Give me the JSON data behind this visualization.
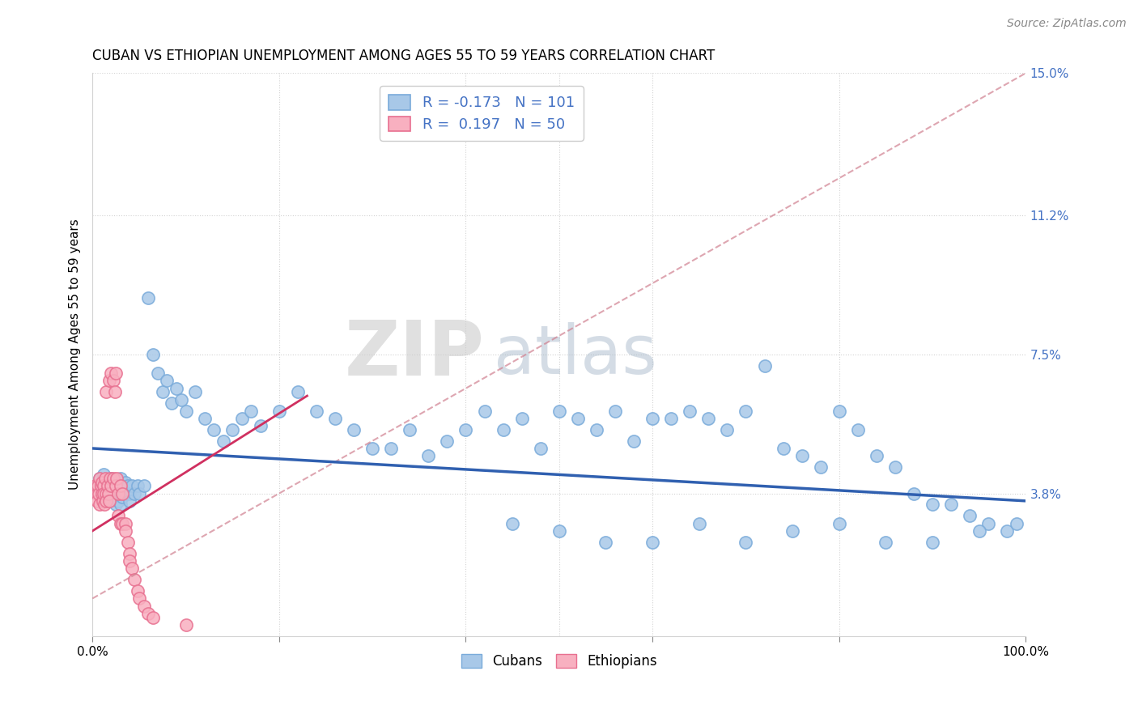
{
  "title": "CUBAN VS ETHIOPIAN UNEMPLOYMENT AMONG AGES 55 TO 59 YEARS CORRELATION CHART",
  "source": "Source: ZipAtlas.com",
  "ylabel": "Unemployment Among Ages 55 to 59 years",
  "xlim": [
    0,
    1.0
  ],
  "ylim": [
    0,
    0.15
  ],
  "xticks": [
    0.0,
    0.2,
    0.4,
    0.6,
    0.8,
    1.0
  ],
  "xticklabels": [
    "0.0%",
    "",
    "",
    "",
    "",
    "100.0%"
  ],
  "ytick_positions": [
    0.038,
    0.075,
    0.112,
    0.15
  ],
  "ytick_labels": [
    "3.8%",
    "7.5%",
    "11.2%",
    "15.0%"
  ],
  "cuban_R": "-0.173",
  "cuban_N": "101",
  "ethiopian_R": "0.197",
  "ethiopian_N": "50",
  "cuban_color": "#a8c8e8",
  "ethiopian_color": "#f8b0c0",
  "cuban_edge_color": "#7aabda",
  "ethiopian_edge_color": "#e87090",
  "cuban_line_color": "#3060b0",
  "ethiopian_line_color": "#d03060",
  "dashed_line_color": "#d08090",
  "watermark_zip_color": "#cccccc",
  "watermark_atlas_color": "#aabbcc",
  "cuban_scatter_x": [
    0.005,
    0.008,
    0.01,
    0.012,
    0.015,
    0.015,
    0.018,
    0.018,
    0.02,
    0.02,
    0.022,
    0.022,
    0.025,
    0.025,
    0.025,
    0.028,
    0.028,
    0.03,
    0.03,
    0.03,
    0.032,
    0.032,
    0.035,
    0.035,
    0.038,
    0.04,
    0.04,
    0.042,
    0.045,
    0.048,
    0.05,
    0.055,
    0.06,
    0.065,
    0.07,
    0.075,
    0.08,
    0.085,
    0.09,
    0.095,
    0.1,
    0.11,
    0.12,
    0.13,
    0.14,
    0.15,
    0.16,
    0.17,
    0.18,
    0.2,
    0.22,
    0.24,
    0.26,
    0.28,
    0.3,
    0.32,
    0.34,
    0.36,
    0.38,
    0.4,
    0.42,
    0.44,
    0.46,
    0.48,
    0.5,
    0.52,
    0.54,
    0.56,
    0.58,
    0.6,
    0.62,
    0.64,
    0.66,
    0.68,
    0.7,
    0.72,
    0.74,
    0.76,
    0.78,
    0.8,
    0.82,
    0.84,
    0.86,
    0.88,
    0.9,
    0.92,
    0.94,
    0.96,
    0.98,
    0.99,
    0.45,
    0.5,
    0.55,
    0.6,
    0.65,
    0.7,
    0.75,
    0.8,
    0.85,
    0.9,
    0.95
  ],
  "cuban_scatter_y": [
    0.04,
    0.042,
    0.038,
    0.043,
    0.04,
    0.036,
    0.041,
    0.038,
    0.042,
    0.039,
    0.04,
    0.037,
    0.041,
    0.038,
    0.035,
    0.04,
    0.036,
    0.042,
    0.038,
    0.035,
    0.04,
    0.037,
    0.041,
    0.038,
    0.04,
    0.038,
    0.036,
    0.04,
    0.038,
    0.04,
    0.038,
    0.04,
    0.09,
    0.075,
    0.07,
    0.065,
    0.068,
    0.062,
    0.066,
    0.063,
    0.06,
    0.065,
    0.058,
    0.055,
    0.052,
    0.055,
    0.058,
    0.06,
    0.056,
    0.06,
    0.065,
    0.06,
    0.058,
    0.055,
    0.05,
    0.05,
    0.055,
    0.048,
    0.052,
    0.055,
    0.06,
    0.055,
    0.058,
    0.05,
    0.06,
    0.058,
    0.055,
    0.06,
    0.052,
    0.058,
    0.058,
    0.06,
    0.058,
    0.055,
    0.06,
    0.072,
    0.05,
    0.048,
    0.045,
    0.06,
    0.055,
    0.048,
    0.045,
    0.038,
    0.035,
    0.035,
    0.032,
    0.03,
    0.028,
    0.03,
    0.03,
    0.028,
    0.025,
    0.025,
    0.03,
    0.025,
    0.028,
    0.03,
    0.025,
    0.025,
    0.028
  ],
  "ethiopian_scatter_x": [
    0.003,
    0.005,
    0.005,
    0.006,
    0.007,
    0.008,
    0.008,
    0.009,
    0.01,
    0.01,
    0.011,
    0.012,
    0.012,
    0.013,
    0.014,
    0.015,
    0.015,
    0.015,
    0.016,
    0.017,
    0.018,
    0.018,
    0.019,
    0.02,
    0.02,
    0.022,
    0.022,
    0.024,
    0.025,
    0.025,
    0.026,
    0.028,
    0.028,
    0.03,
    0.03,
    0.032,
    0.032,
    0.035,
    0.035,
    0.038,
    0.04,
    0.04,
    0.042,
    0.045,
    0.048,
    0.05,
    0.055,
    0.06,
    0.065,
    0.1
  ],
  "ethiopian_scatter_y": [
    0.04,
    0.038,
    0.036,
    0.04,
    0.038,
    0.042,
    0.035,
    0.04,
    0.038,
    0.041,
    0.036,
    0.04,
    0.038,
    0.035,
    0.042,
    0.038,
    0.036,
    0.065,
    0.04,
    0.038,
    0.036,
    0.068,
    0.042,
    0.04,
    0.07,
    0.068,
    0.042,
    0.065,
    0.04,
    0.07,
    0.042,
    0.038,
    0.032,
    0.04,
    0.03,
    0.038,
    0.03,
    0.03,
    0.028,
    0.025,
    0.022,
    0.02,
    0.018,
    0.015,
    0.012,
    0.01,
    0.008,
    0.006,
    0.005,
    0.003
  ],
  "cuban_line_x0": 0.0,
  "cuban_line_y0": 0.05,
  "cuban_line_x1": 1.0,
  "cuban_line_y1": 0.036,
  "ethiopian_line_x0": 0.0,
  "ethiopian_line_y0": 0.028,
  "ethiopian_line_x1": 0.23,
  "ethiopian_line_y1": 0.064,
  "dashed_line_x0": 0.0,
  "dashed_line_y0": 0.01,
  "dashed_line_x1": 1.0,
  "dashed_line_y1": 0.15
}
